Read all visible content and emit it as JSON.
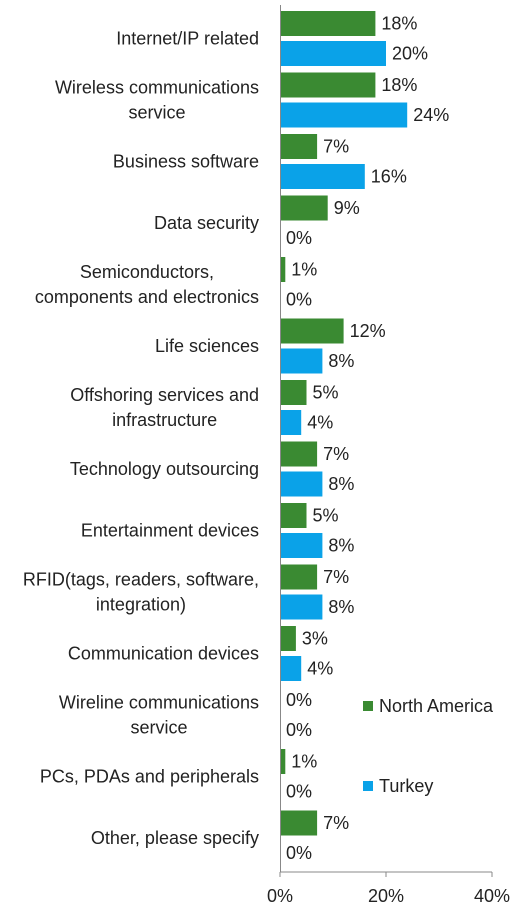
{
  "chart_data": {
    "type": "bar",
    "orientation": "horizontal",
    "categories": [
      [
        "Internet/IP related"
      ],
      [
        "Wireless communications",
        "service"
      ],
      [
        "Business software"
      ],
      [
        "Data security"
      ],
      [
        "Semiconductors,",
        "components and electronics"
      ],
      [
        "Life sciences"
      ],
      [
        "Offshoring services and",
        "infrastructure"
      ],
      [
        "Technology outsourcing"
      ],
      [
        "Entertainment devices"
      ],
      [
        "RFID(tags, readers, software,",
        "integration)"
      ],
      [
        "Communication devices"
      ],
      [
        "Wireline communications",
        "service"
      ],
      [
        "PCs, PDAs and peripherals"
      ],
      [
        "Other, please specify"
      ]
    ],
    "series": [
      {
        "name": "North America",
        "color": "#3a8a32",
        "values": [
          18,
          18,
          7,
          9,
          1,
          12,
          5,
          7,
          5,
          7,
          3,
          0,
          1,
          7
        ]
      },
      {
        "name": "Turkey",
        "color": "#0aa2e8",
        "values": [
          20,
          24,
          16,
          0,
          0,
          8,
          4,
          8,
          8,
          8,
          4,
          0,
          0,
          0
        ]
      }
    ],
    "value_suffix": "%",
    "xlim": [
      0,
      40
    ],
    "xticks": [
      "0%",
      "20%",
      "40%"
    ],
    "grid": false,
    "legend_position": "right-lower"
  }
}
